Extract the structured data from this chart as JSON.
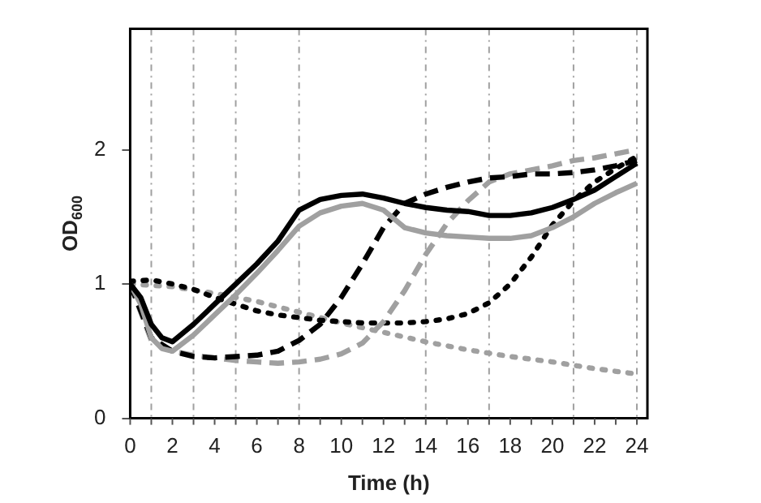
{
  "chart_data": {
    "type": "line",
    "xlabel": "Time (h)",
    "ylabel": "OD$_{600}$",
    "xlim": [
      0,
      24.5
    ],
    "xticks": [
      0,
      2,
      4,
      6,
      8,
      10,
      12,
      14,
      16,
      18,
      20,
      22,
      24
    ],
    "ylim": [
      0,
      2.9
    ],
    "yticks": [
      0,
      1,
      2
    ],
    "grid": false,
    "legend": false,
    "marker": "none",
    "ref_lines": [
      {
        "axis": "x",
        "value": 1,
        "color": "#a0a0a0",
        "line_style": "dashed"
      },
      {
        "axis": "x",
        "value": 3,
        "color": "#a0a0a0",
        "line_style": "dashed"
      },
      {
        "axis": "x",
        "value": 5,
        "color": "#a0a0a0",
        "line_style": "dashed"
      },
      {
        "axis": "x",
        "value": 8,
        "color": "#a0a0a0",
        "line_style": "dashed"
      },
      {
        "axis": "x",
        "value": 14,
        "color": "#a0a0a0",
        "line_style": "dashed"
      },
      {
        "axis": "x",
        "value": 17,
        "color": "#a0a0a0",
        "line_style": "dashed"
      },
      {
        "axis": "x",
        "value": 21,
        "color": "#a0a0a0",
        "line_style": "dashed"
      },
      {
        "axis": "x",
        "value": 24,
        "color": "#a0a0a0",
        "line_style": "dashed"
      }
    ],
    "series": [
      {
        "color": "#000000",
        "line_style": "solid",
        "x": [
          0,
          0.5,
          1,
          1.5,
          2,
          3,
          4,
          5,
          6,
          7,
          8,
          9,
          10,
          11,
          12,
          13,
          14,
          15,
          16,
          17,
          18,
          19,
          20,
          21,
          22,
          23,
          24
        ],
        "values": [
          1.0,
          0.9,
          0.7,
          0.6,
          0.57,
          0.7,
          0.85,
          1.0,
          1.15,
          1.32,
          1.55,
          1.63,
          1.66,
          1.67,
          1.64,
          1.6,
          1.57,
          1.55,
          1.54,
          1.51,
          1.51,
          1.53,
          1.57,
          1.63,
          1.7,
          1.8,
          1.9
        ]
      },
      {
        "color": "#a0a0a0",
        "line_style": "solid",
        "x": [
          0,
          0.5,
          1,
          1.5,
          2,
          3,
          4,
          5,
          6,
          7,
          8,
          9,
          10,
          11,
          12,
          13,
          14,
          15,
          16,
          17,
          18,
          19,
          20,
          21,
          22,
          23,
          24
        ],
        "values": [
          1.0,
          0.85,
          0.6,
          0.52,
          0.5,
          0.62,
          0.77,
          0.92,
          1.08,
          1.25,
          1.43,
          1.53,
          1.58,
          1.6,
          1.55,
          1.42,
          1.38,
          1.36,
          1.35,
          1.34,
          1.34,
          1.36,
          1.42,
          1.5,
          1.6,
          1.68,
          1.75
        ]
      },
      {
        "color": "#000000",
        "line_style": "dashed",
        "x": [
          0,
          1,
          2,
          3,
          4,
          5,
          6,
          7,
          8,
          9,
          10,
          11,
          12,
          13,
          14,
          15,
          16,
          17,
          18,
          19,
          20,
          21,
          22,
          23,
          24
        ],
        "values": [
          1.0,
          0.6,
          0.5,
          0.46,
          0.45,
          0.46,
          0.47,
          0.5,
          0.58,
          0.7,
          0.9,
          1.15,
          1.42,
          1.6,
          1.67,
          1.72,
          1.76,
          1.79,
          1.8,
          1.82,
          1.82,
          1.83,
          1.85,
          1.88,
          1.92
        ]
      },
      {
        "color": "#a0a0a0",
        "line_style": "dashed",
        "x": [
          0,
          1,
          2,
          3,
          4,
          5,
          6,
          7,
          8,
          9,
          10,
          11,
          12,
          13,
          14,
          15,
          16,
          17,
          18,
          19,
          20,
          21,
          22,
          23,
          24
        ],
        "values": [
          1.0,
          0.58,
          0.5,
          0.47,
          0.45,
          0.43,
          0.42,
          0.41,
          0.42,
          0.44,
          0.48,
          0.56,
          0.72,
          0.95,
          1.22,
          1.45,
          1.62,
          1.76,
          1.82,
          1.85,
          1.88,
          1.92,
          1.94,
          1.97,
          2.0
        ]
      },
      {
        "color": "#000000",
        "line_style": "dotted",
        "x": [
          0,
          1,
          2,
          3,
          4,
          5,
          6,
          7,
          8,
          9,
          10,
          11,
          12,
          13,
          14,
          15,
          16,
          17,
          18,
          19,
          20,
          21,
          22,
          23,
          24
        ],
        "values": [
          1.02,
          1.03,
          1.0,
          0.96,
          0.9,
          0.85,
          0.8,
          0.77,
          0.75,
          0.73,
          0.72,
          0.71,
          0.71,
          0.71,
          0.72,
          0.74,
          0.78,
          0.86,
          1.0,
          1.2,
          1.44,
          1.62,
          1.76,
          1.86,
          1.95
        ]
      },
      {
        "color": "#a0a0a0",
        "line_style": "dotted",
        "x": [
          0,
          2,
          4,
          6,
          8,
          10,
          12,
          14,
          16,
          18,
          20,
          22,
          24
        ],
        "values": [
          1.0,
          0.98,
          0.93,
          0.87,
          0.79,
          0.71,
          0.64,
          0.57,
          0.51,
          0.46,
          0.42,
          0.37,
          0.33
        ]
      }
    ]
  }
}
